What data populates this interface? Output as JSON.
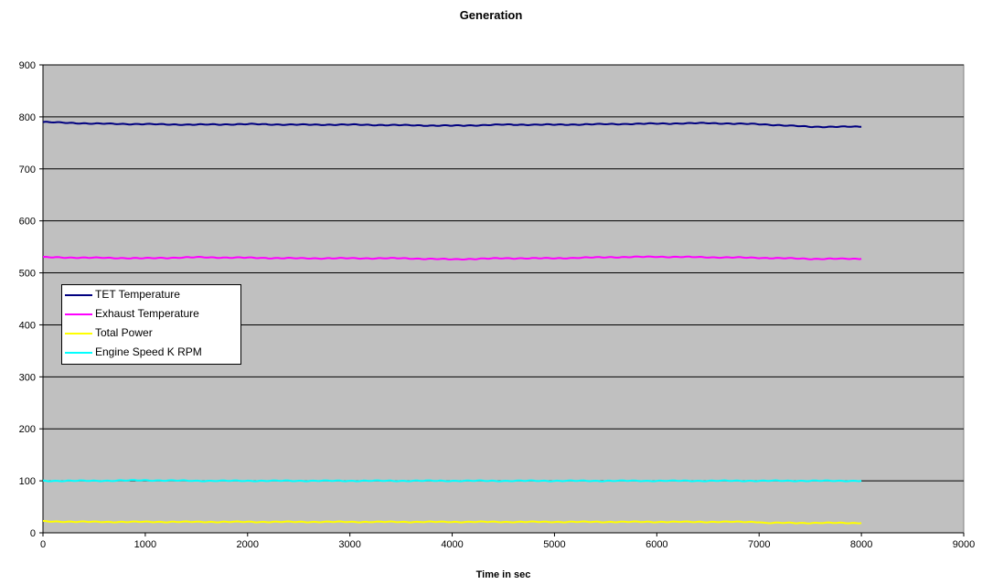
{
  "chart_data": {
    "type": "line",
    "title": "Generation",
    "xlabel": "Time in sec",
    "ylabel": "",
    "xlim": [
      0,
      9000
    ],
    "ylim": [
      0,
      900
    ],
    "x_ticks": [
      0,
      1000,
      2000,
      3000,
      4000,
      5000,
      6000,
      7000,
      8000,
      9000
    ],
    "y_ticks": [
      0,
      100,
      200,
      300,
      400,
      500,
      600,
      700,
      800,
      900
    ],
    "grid": "horizontal",
    "plot_background": "#c0c0c0",
    "legend_position": "left",
    "series": [
      {
        "name": "TET  Temperature",
        "color": "#000080",
        "x": [
          0,
          500,
          1000,
          1500,
          2000,
          2500,
          3000,
          3500,
          4000,
          4500,
          5000,
          5500,
          6000,
          6500,
          7000,
          7500,
          8000
        ],
        "y": [
          790,
          787,
          786,
          785,
          786,
          785,
          785,
          784,
          783,
          785,
          785,
          786,
          787,
          788,
          786,
          781,
          781
        ]
      },
      {
        "name": "Exhaust Temperature",
        "color": "#ff00ff",
        "x": [
          0,
          500,
          1000,
          1500,
          2000,
          2500,
          3000,
          3500,
          4000,
          4500,
          5000,
          5500,
          6000,
          6500,
          7000,
          7500,
          8000
        ],
        "y": [
          530,
          529,
          528,
          530,
          529,
          528,
          528,
          528,
          526,
          528,
          528,
          530,
          531,
          530,
          529,
          527,
          527
        ]
      },
      {
        "name": "Total Power",
        "color": "#ffff00",
        "x": [
          0,
          500,
          1000,
          1500,
          2000,
          2500,
          3000,
          3500,
          4000,
          4500,
          5000,
          5500,
          6000,
          6500,
          7000,
          7050,
          7500,
          8000
        ],
        "y": [
          22,
          21,
          21,
          21,
          21,
          21,
          21,
          21,
          21,
          21,
          21,
          21,
          21,
          21,
          21,
          19,
          19,
          19
        ]
      },
      {
        "name": "Engine Speed K RPM",
        "color": "#00ffff",
        "x": [
          0,
          500,
          1000,
          1500,
          2000,
          2500,
          3000,
          3500,
          4000,
          4500,
          5000,
          5500,
          6000,
          6500,
          7000,
          7500,
          8000
        ],
        "y": [
          100,
          100,
          101,
          100,
          100,
          100,
          100,
          100,
          100,
          100,
          100,
          100,
          100,
          100,
          100,
          100,
          100
        ]
      }
    ]
  }
}
